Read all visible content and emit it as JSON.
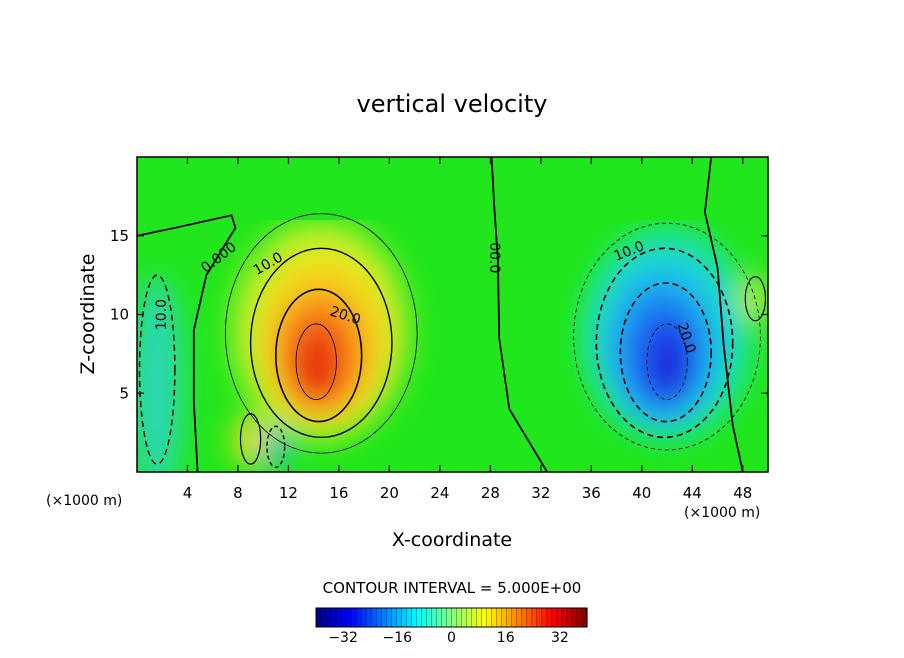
{
  "chart_data": {
    "type": "heatmap",
    "subtype": "filled contour",
    "title": "vertical velocity",
    "xlabel": "X-coordinate",
    "ylabel": "Z-coordinate",
    "x_unit_label": "(×1000 m)",
    "z_unit_label": "(×1000 m)",
    "xlim": [
      0,
      50
    ],
    "ylim": [
      0,
      20
    ],
    "x_ticks": [
      4,
      8,
      12,
      16,
      20,
      24,
      28,
      32,
      36,
      40,
      44,
      48
    ],
    "y_ticks": [
      5,
      10,
      15
    ],
    "contour_interval_text": "CONTOUR INTERVAL = 5.000E+00",
    "contour_labels": [
      {
        "text": "0.000",
        "x": 6.5,
        "z": 13.6,
        "angle": -38
      },
      {
        "text": "10.0",
        "x": 10.4,
        "z": 13.2,
        "angle": -30
      },
      {
        "text": "20.0",
        "x": 16.5,
        "z": 9.9,
        "angle": 18
      },
      {
        "text": "00.0",
        "x": 28.3,
        "z": 13.6,
        "angle": 90
      },
      {
        "text": "10.0",
        "x": 39.0,
        "z": 14.0,
        "angle": -22
      },
      {
        "text": "20.0",
        "x": 43.5,
        "z": 8.5,
        "angle": 72
      },
      {
        "text": "10.0",
        "x": 2.0,
        "z": 10.0,
        "angle": -90
      }
    ],
    "features": [
      {
        "sign": "updraft",
        "x_center": 14.5,
        "z_center": 7.5,
        "peak_value": 33
      },
      {
        "sign": "downdraft",
        "x_center": 42.0,
        "z_center": 7.5,
        "peak_value": -30
      }
    ],
    "colorbar": {
      "ticks": [
        -32,
        -16,
        0,
        16,
        32
      ],
      "tick_labels": [
        "−32",
        "−16",
        "0",
        "16",
        "32"
      ],
      "range": [
        -40,
        40
      ]
    }
  }
}
